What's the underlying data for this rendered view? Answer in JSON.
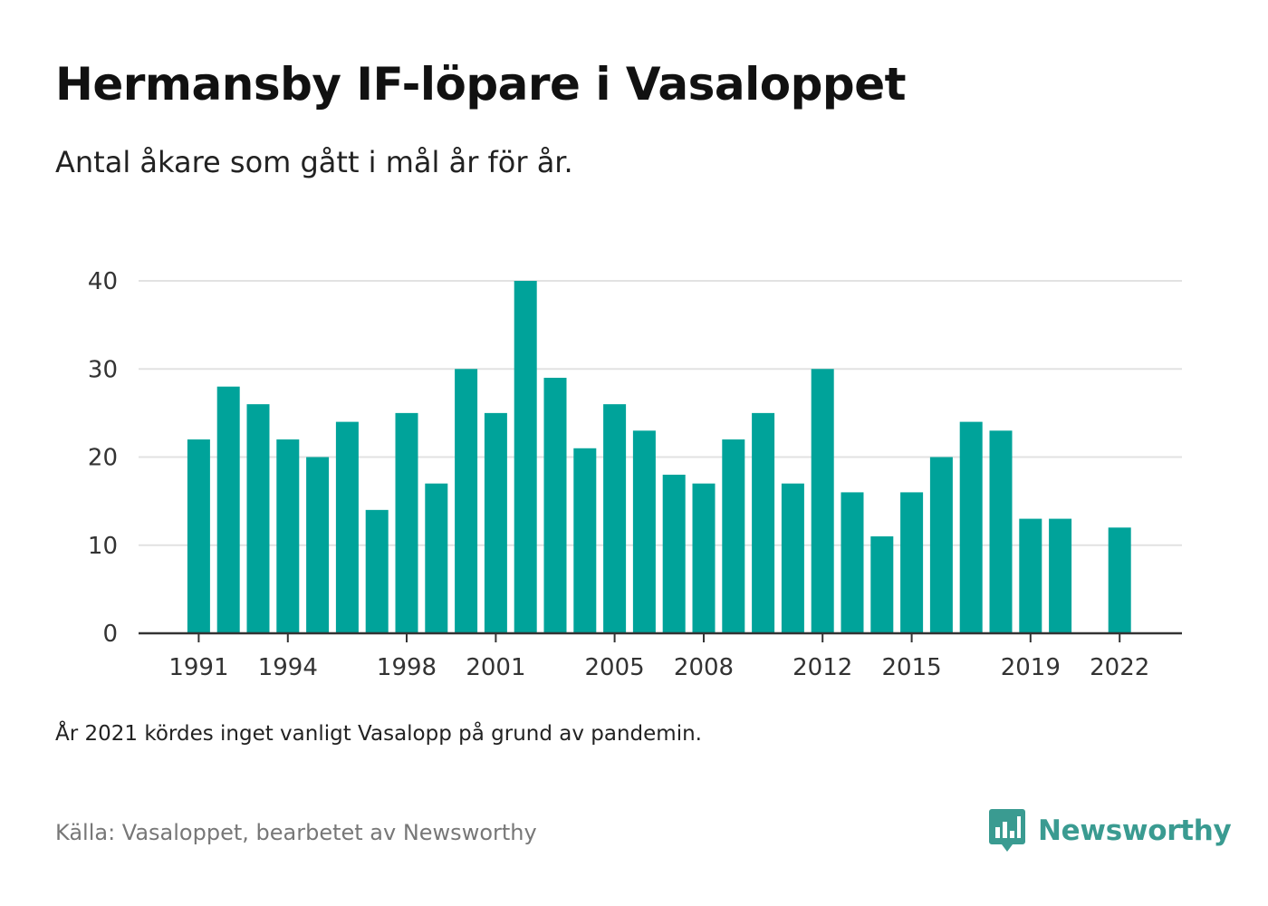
{
  "header": {
    "title": "Hermansby IF-löpare i Vasaloppet",
    "subtitle": "Antal åkare som gått i mål år för år."
  },
  "footer": {
    "note": "År 2021 kördes inget vanligt Vasalopp på grund av pandemin.",
    "source": "Källa: Vasaloppet, bearbetet av Newsworthy",
    "brand": "Newsworthy"
  },
  "colors": {
    "bar": "#00a39a",
    "brand": "#3a9b91",
    "grid": "#e2e2e2",
    "axis": "#333333"
  },
  "icons": {
    "brand_logo": "bar-chart-speech-bubble-icon"
  },
  "chart_data": {
    "type": "bar",
    "x": [
      1991,
      1992,
      1993,
      1994,
      1995,
      1996,
      1997,
      1998,
      1999,
      2000,
      2001,
      2002,
      2003,
      2004,
      2005,
      2006,
      2007,
      2008,
      2009,
      2010,
      2011,
      2012,
      2013,
      2014,
      2015,
      2016,
      2017,
      2018,
      2019,
      2020,
      2021,
      2022
    ],
    "values": [
      22,
      28,
      26,
      22,
      20,
      24,
      14,
      25,
      17,
      30,
      25,
      40,
      29,
      21,
      26,
      23,
      18,
      17,
      22,
      25,
      17,
      30,
      16,
      11,
      16,
      20,
      24,
      23,
      13,
      13,
      null,
      12
    ],
    "x_tick_labels": [
      "1991",
      "1994",
      "1998",
      "2001",
      "2005",
      "2008",
      "2012",
      "2015",
      "2019",
      "2022"
    ],
    "y_ticks": [
      0,
      10,
      20,
      30,
      40
    ],
    "ylim": [
      0,
      40
    ],
    "grid": true,
    "xlabel": "",
    "ylabel": ""
  }
}
